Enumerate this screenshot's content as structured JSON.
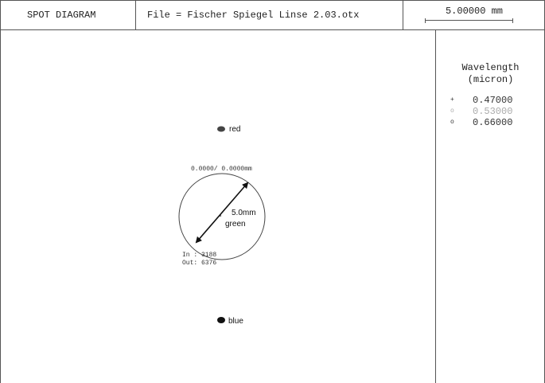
{
  "header": {
    "title": "SPOT DIAGRAM",
    "file": "File = Fischer Spiegel Linse 2.03.otx",
    "scale": "5.00000  mm"
  },
  "legend": {
    "title_line1": "Wavelength",
    "title_line2": "(micron)",
    "items": [
      {
        "value": "0.47000",
        "marker": "+",
        "color": "#333333"
      },
      {
        "value": "0.53000",
        "marker": "o",
        "color": "#aaaaaa"
      },
      {
        "value": "0.66000",
        "marker": "o",
        "color": "#333333"
      }
    ]
  },
  "spots": {
    "red_label": "red",
    "blue_label": "blue",
    "green_label": "green",
    "field_coords": "0.0000/   0.0000mm",
    "in_count": "In : 3188",
    "out_count": "Out: 6376",
    "diameter_label": "5.0mm"
  }
}
